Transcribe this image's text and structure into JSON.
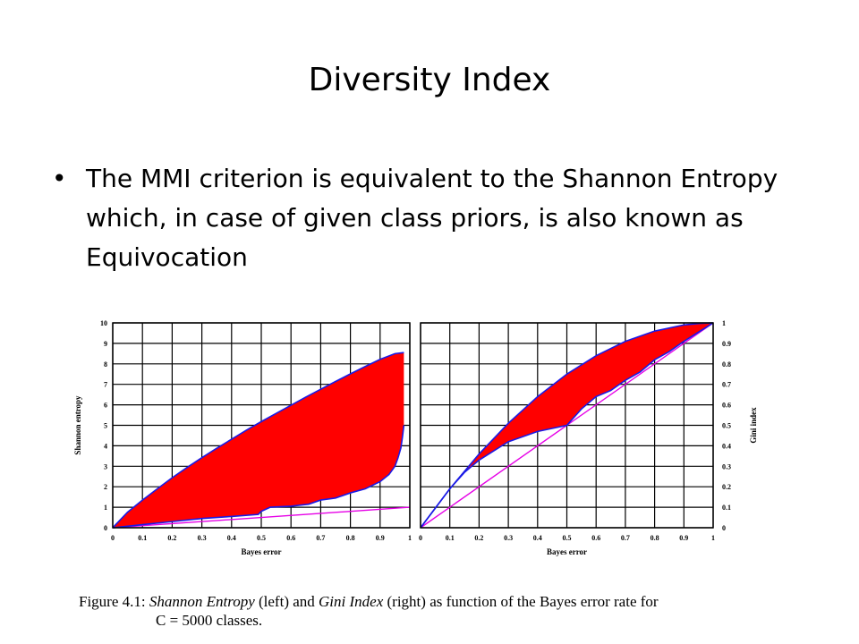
{
  "slide": {
    "title": "Diversity Index",
    "bullet": "The MMI criterion is equivalent to the Shannon Entropy which, in case of given class priors, is also known as Equivocation"
  },
  "caption": {
    "prefix": "Figure 4.1:",
    "term1": "Shannon Entropy",
    "mid1": "(left) and",
    "term2": "Gini Index",
    "mid2": "(right) as function of the Bayes error rate for",
    "line2": "C = 5000 classes."
  },
  "colors": {
    "fill": "#ff0000",
    "upper": "#1a1ae6",
    "lower": "#1a1ae6",
    "reference": "#e600e6",
    "grid": "#000000"
  },
  "chart_data": [
    {
      "type": "area",
      "xlabel": "Bayes error",
      "ylabel": "Shannon entropy",
      "xlim": [
        0,
        1
      ],
      "ylim": [
        0,
        10
      ],
      "xticks": [
        "0",
        "0.1",
        "0.2",
        "0.3",
        "0.4",
        "0.5",
        "0.6",
        "0.7",
        "0.8",
        "0.9",
        "1"
      ],
      "yticks": [
        "0",
        "1",
        "2",
        "3",
        "4",
        "5",
        "6",
        "7",
        "8",
        "9",
        "10"
      ],
      "grid": true,
      "upper": {
        "x": [
          0,
          0.05,
          0.1,
          0.15,
          0.2,
          0.25,
          0.3,
          0.35,
          0.4,
          0.45,
          0.5,
          0.55,
          0.6,
          0.65,
          0.7,
          0.75,
          0.8,
          0.85,
          0.9,
          0.95,
          0.98
        ],
        "y": [
          0,
          0.76,
          1.35,
          1.9,
          2.44,
          2.94,
          3.42,
          3.88,
          4.32,
          4.76,
          5.18,
          5.58,
          5.98,
          6.38,
          6.76,
          7.14,
          7.51,
          7.87,
          8.22,
          8.5,
          8.55
        ]
      },
      "lower": {
        "x": [
          0,
          0.1,
          0.2,
          0.3,
          0.4,
          0.49,
          0.5,
          0.53,
          0.6,
          0.66,
          0.7,
          0.75,
          0.8,
          0.85,
          0.9,
          0.93,
          0.95,
          0.96,
          0.97,
          0.975,
          0.98
        ],
        "y": [
          0,
          0.15,
          0.3,
          0.45,
          0.55,
          0.65,
          0.8,
          1.0,
          1.05,
          1.15,
          1.35,
          1.45,
          1.7,
          1.9,
          2.25,
          2.6,
          3.0,
          3.4,
          3.9,
          4.4,
          5.0
        ]
      },
      "reference": {
        "x": [
          0,
          1
        ],
        "y": [
          0,
          1
        ]
      }
    },
    {
      "type": "area",
      "xlabel": "Bayes error",
      "ylabel": "Gini index",
      "xlim": [
        0,
        1
      ],
      "ylim": [
        0,
        1
      ],
      "xticks": [
        "0",
        "0.1",
        "0.2",
        "0.3",
        "0.4",
        "0.5",
        "0.6",
        "0.7",
        "0.8",
        "0.9",
        "1"
      ],
      "yticks": [
        "0",
        "0.1",
        "0.2",
        "0.3",
        "0.4",
        "0.5",
        "0.6",
        "0.7",
        "0.8",
        "0.9",
        "1"
      ],
      "grid": true,
      "upper": {
        "x": [
          0,
          0.1,
          0.2,
          0.3,
          0.4,
          0.5,
          0.6,
          0.7,
          0.8,
          0.9,
          0.95,
          1
        ],
        "y": [
          0,
          0.19,
          0.36,
          0.51,
          0.64,
          0.75,
          0.84,
          0.91,
          0.96,
          0.99,
          0.997,
          1
        ]
      },
      "lower": {
        "x": [
          0,
          0.1,
          0.15,
          0.2,
          0.3,
          0.4,
          0.5,
          0.55,
          0.6,
          0.65,
          0.7,
          0.75,
          0.8,
          0.85,
          0.9,
          0.95,
          1
        ],
        "y": [
          0,
          0.19,
          0.27,
          0.33,
          0.42,
          0.47,
          0.5,
          0.58,
          0.64,
          0.67,
          0.72,
          0.76,
          0.82,
          0.86,
          0.91,
          0.955,
          1
        ]
      },
      "reference": {
        "x": [
          0,
          1
        ],
        "y": [
          0,
          1
        ]
      }
    }
  ]
}
